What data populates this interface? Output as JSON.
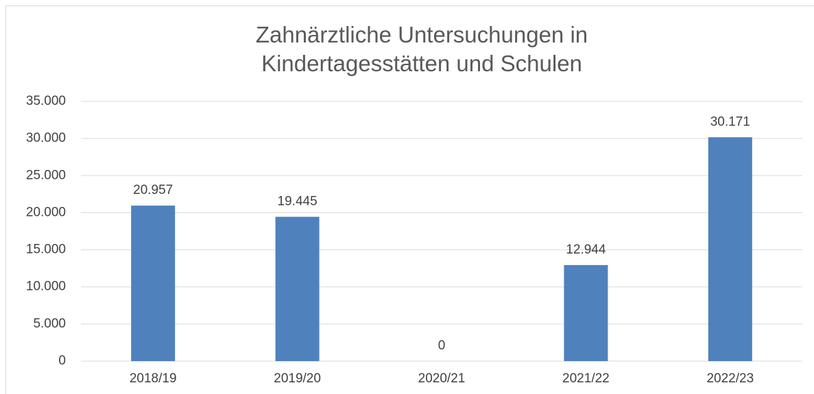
{
  "chart_data": {
    "type": "bar",
    "title": "Zahnärztliche Untersuchungen in Kindertagesstätten und Schulen",
    "categories": [
      "2018/19",
      "2019/20",
      "2020/21",
      "2021/22",
      "2022/23"
    ],
    "values": [
      20957,
      19445,
      0,
      12944,
      30171
    ],
    "value_labels": [
      "20.957",
      "19.445",
      "0",
      "12.944",
      "30.171"
    ],
    "color": "#4f81bd",
    "ylim": [
      0,
      35000
    ],
    "yticks": [
      0,
      {
        "value": 5000,
        "label": "5.000"
      },
      {
        "value": 10000,
        "label": "10.000"
      },
      {
        "value": 15000,
        "label": "15.000"
      },
      {
        "value": 20000,
        "label": "20.000"
      },
      {
        "value": 25000,
        "label": "25.000"
      },
      {
        "value": 30000,
        "label": "30.000"
      },
      {
        "value": 35000,
        "label": "35.000"
      }
    ],
    "grid": true
  }
}
